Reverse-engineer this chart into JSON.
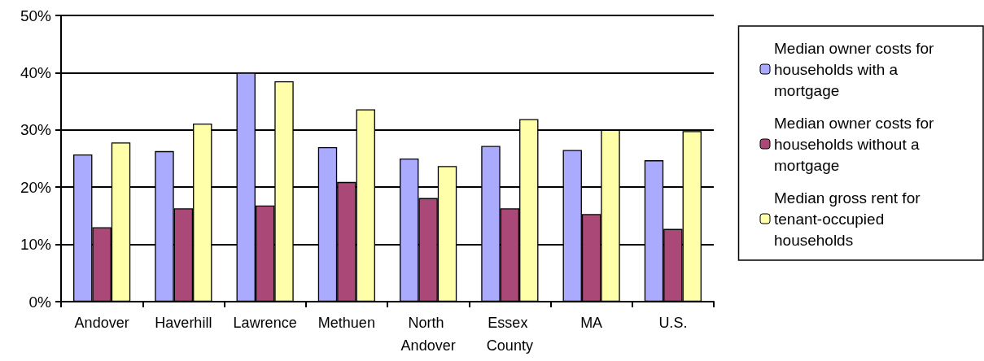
{
  "chart_data": {
    "type": "bar",
    "categories": [
      "Andover",
      "Haverhill",
      "Lawrence",
      "Methuen",
      "North Andover",
      "Essex County",
      "MA",
      "U.S."
    ],
    "series": [
      {
        "name": "Median owner costs for households with a mortgage",
        "color": "#aaaaff",
        "values": [
          25.7,
          26.3,
          40.0,
          27.0,
          25.0,
          27.2,
          26.5,
          24.7
        ]
      },
      {
        "name": "Median owner costs for households without a mortgage",
        "color": "#aa4977",
        "values": [
          13.0,
          16.3,
          16.8,
          20.9,
          18.1,
          16.3,
          15.3,
          12.7
        ]
      },
      {
        "name": "Median gross rent for tenant-occupied households",
        "color": "#ffffaa",
        "values": [
          27.8,
          31.1,
          38.5,
          33.6,
          23.7,
          31.9,
          30.0,
          29.8
        ]
      }
    ],
    "ylim": [
      0,
      50
    ],
    "yticks": [
      {
        "value": 0,
        "label": "0%"
      },
      {
        "value": 10,
        "label": "10%"
      },
      {
        "value": 20,
        "label": "20%"
      },
      {
        "value": 30,
        "label": "30%"
      },
      {
        "value": 40,
        "label": "40%"
      },
      {
        "value": 50,
        "label": "50%"
      }
    ],
    "grid": "y",
    "legend": "right"
  }
}
